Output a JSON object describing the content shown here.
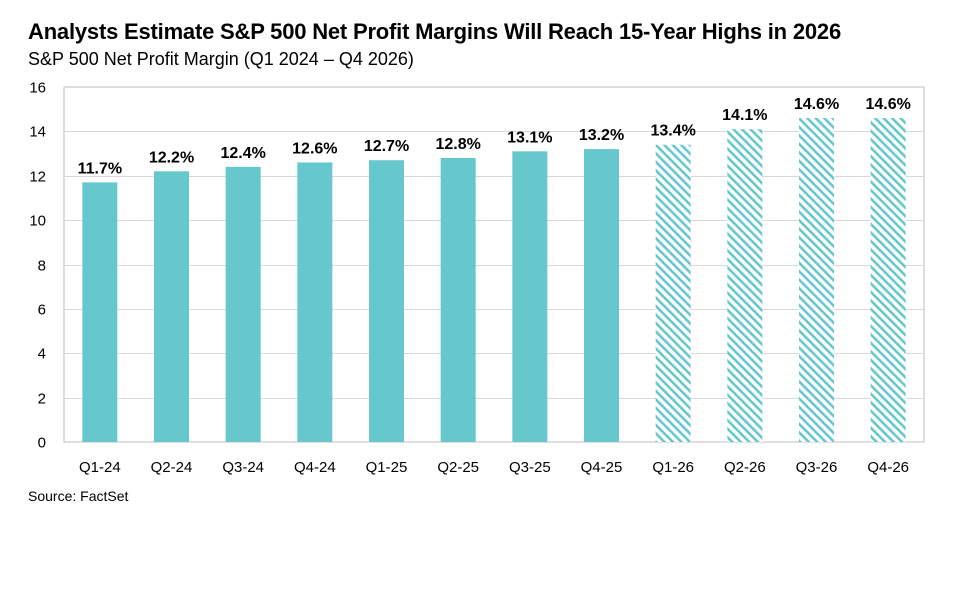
{
  "title": "Analysts Estimate S&P 500 Net Profit Margins Will Reach 15-Year Highs in 2026",
  "subtitle": "S&P 500 Net Profit Margin (Q1 2024 – Q4 2026)",
  "source": "Source: FactSet",
  "colors": {
    "bar": "#66c7cc",
    "estimate_hatch": "#66c7cc",
    "grid": "#d9d9d9",
    "axis": "#bfbfbf"
  },
  "chart_data": {
    "type": "bar",
    "categories": [
      "Q1-24",
      "Q2-24",
      "Q3-24",
      "Q4-24",
      "Q1-25",
      "Q2-25",
      "Q3-25",
      "Q4-25",
      "Q1-26",
      "Q2-26",
      "Q3-26",
      "Q4-26"
    ],
    "values": [
      11.7,
      12.2,
      12.4,
      12.6,
      12.7,
      12.8,
      13.1,
      13.2,
      13.4,
      14.1,
      14.6,
      14.6
    ],
    "data_labels": [
      "11.7%",
      "12.2%",
      "12.4%",
      "12.6%",
      "12.7%",
      "12.8%",
      "13.1%",
      "13.2%",
      "13.4%",
      "14.1%",
      "14.6%",
      "14.6%"
    ],
    "estimate": [
      false,
      false,
      false,
      false,
      false,
      false,
      false,
      false,
      true,
      true,
      true,
      true
    ],
    "ylim": [
      0,
      16
    ],
    "yticks": [
      0,
      2,
      4,
      6,
      8,
      10,
      12,
      14,
      16
    ],
    "grid": true,
    "xlabel": "",
    "ylabel": ""
  }
}
